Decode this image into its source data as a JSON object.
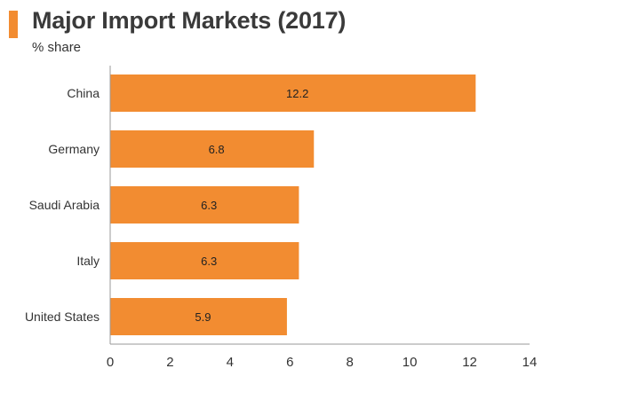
{
  "title": "Major Import Markets (2017)",
  "subtitle": "% share",
  "colors": {
    "accent": "#F28C31",
    "bar": "#F28C31",
    "axis": "#9a9a9a",
    "text": "#333333"
  },
  "chart_data": {
    "type": "bar",
    "orientation": "horizontal",
    "title": "Major Import Markets (2017)",
    "subtitle": "% share",
    "categories": [
      "China",
      "Germany",
      "Saudi Arabia",
      "Italy",
      "United States"
    ],
    "values": [
      12.2,
      6.8,
      6.3,
      6.3,
      5.9
    ],
    "data_labels": [
      "12.2",
      "6.8",
      "6.3",
      "6.3",
      "5.9"
    ],
    "xlim": [
      0,
      14
    ],
    "x_ticks": [
      0,
      2,
      4,
      6,
      8,
      10,
      12,
      14
    ],
    "xlabel": "",
    "ylabel": "",
    "grid": false,
    "legend": "none"
  }
}
